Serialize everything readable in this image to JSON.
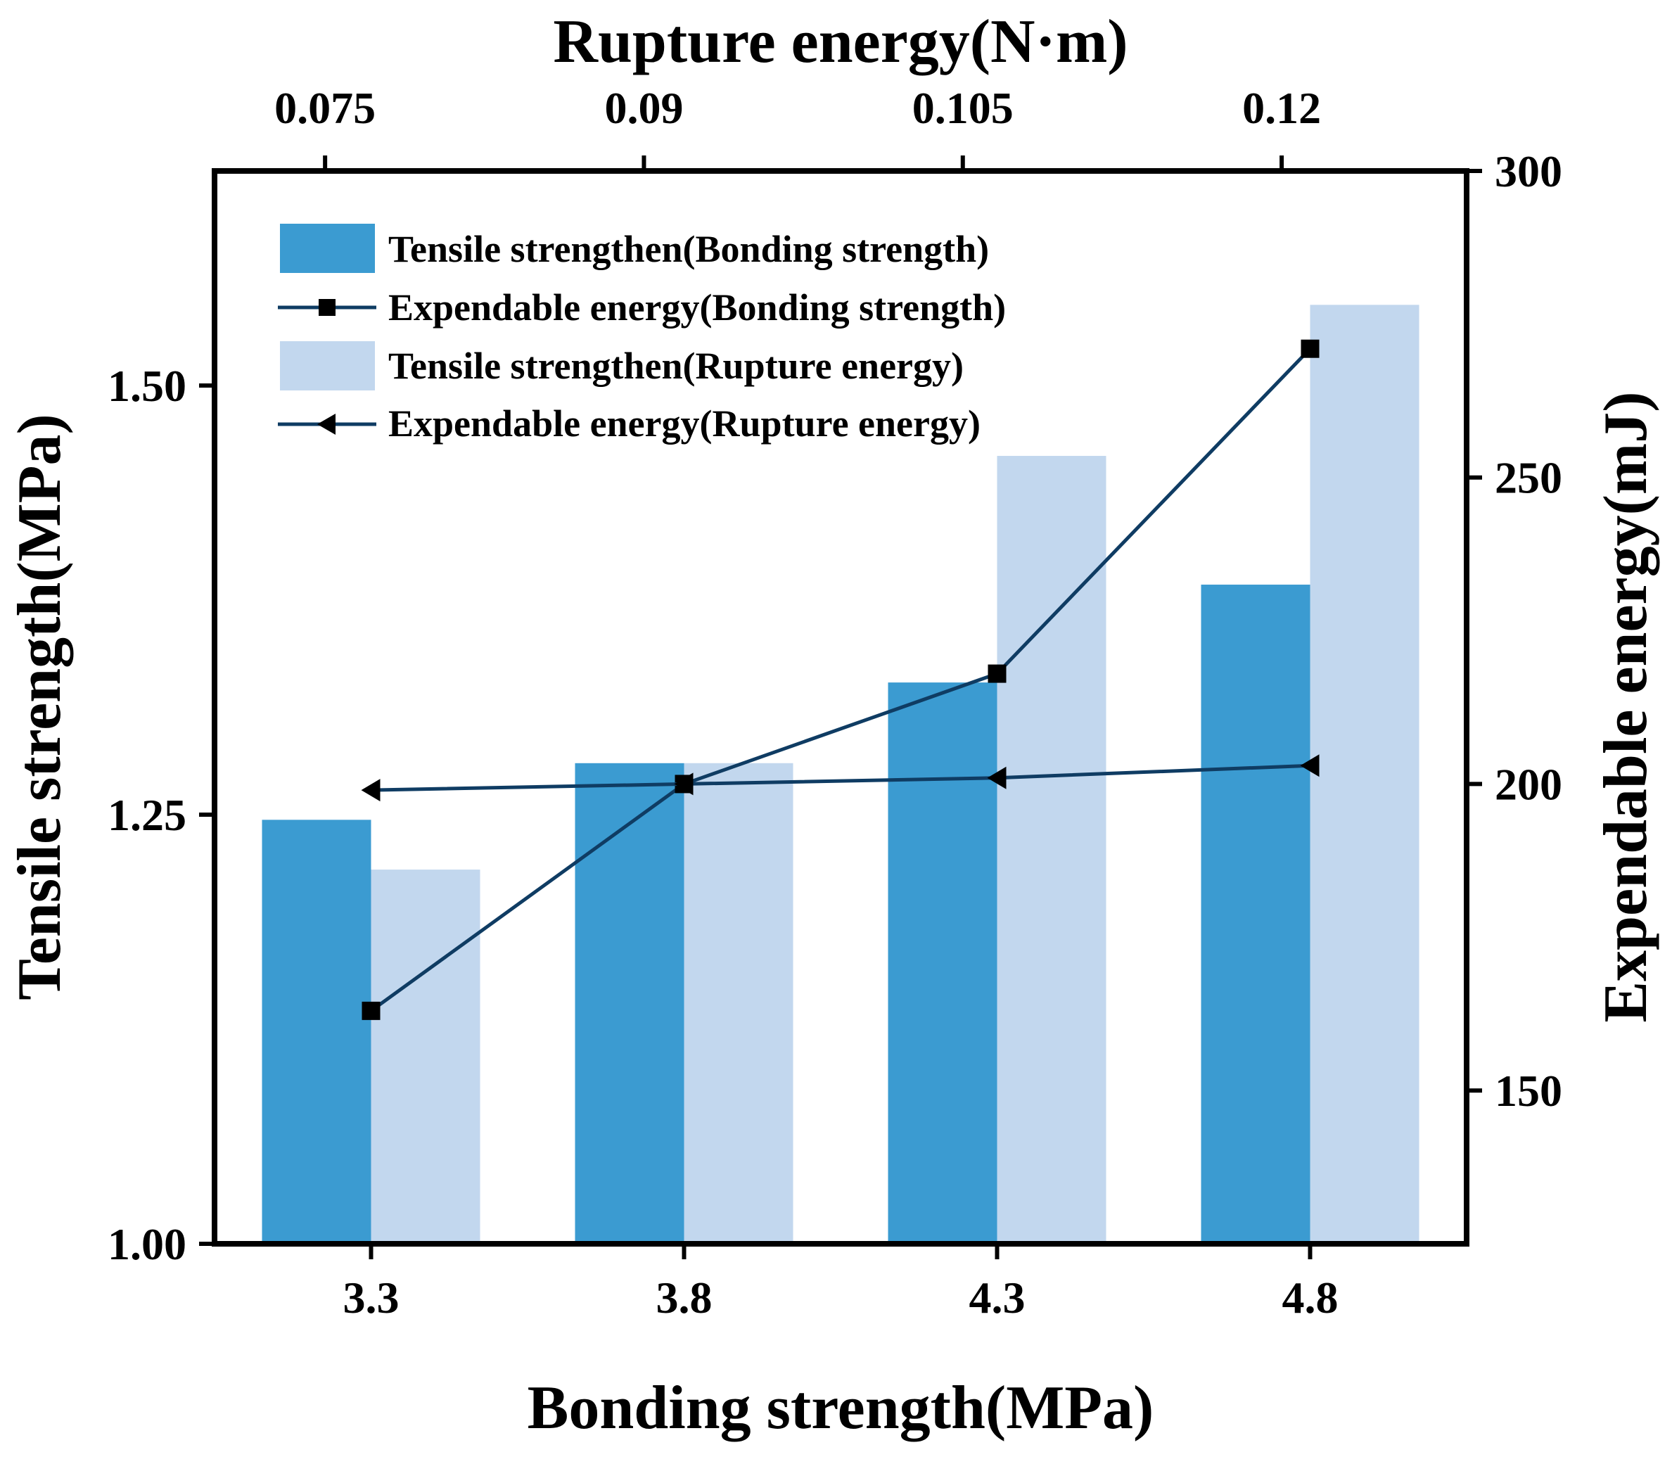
{
  "chart_data": {
    "type": "bar",
    "title": "",
    "xlabel": "Bonding strength(MPa)",
    "x2label": "Rupture energy(N·m)",
    "ylabel": "Tensile strength(MPa)",
    "y2label": "Expendable energy(mJ)",
    "categories": [
      "3.3",
      "3.8",
      "4.3",
      "4.8"
    ],
    "top_ticks": [
      "0.075",
      "0.09",
      "0.105",
      "0.12"
    ],
    "top_tick_values": [
      0.075,
      0.09,
      0.105,
      0.12
    ],
    "top_axis_range": [
      0.0698,
      0.1287
    ],
    "ylim": [
      1.0,
      1.625
    ],
    "yticks": [
      "1.00",
      "1.25",
      "1.50"
    ],
    "ytick_values": [
      1.0,
      1.25,
      1.5
    ],
    "y2lim": [
      125,
      300
    ],
    "y2ticks": [
      "150",
      "200",
      "250",
      "300"
    ],
    "y2tick_values": [
      150,
      200,
      250,
      300
    ],
    "grid": false,
    "legend_position": "top-left",
    "colors": {
      "dark_bar": "#3b9bd1",
      "light_bar": "#c2d7ee",
      "line": "#0f3c63",
      "axis": "#000000"
    },
    "series": [
      {
        "name": "Tensile strengthen(Bonding strength)",
        "kind": "bar",
        "axis": "left",
        "color": "#3b9bd1",
        "values": [
          1.247,
          1.28,
          1.327,
          1.384
        ]
      },
      {
        "name": "Tensile strengthen(Rupture energy)",
        "kind": "bar",
        "axis": "left",
        "color": "#c2d7ee",
        "values": [
          1.218,
          1.28,
          1.459,
          1.547
        ]
      },
      {
        "name": "Expendable energy(Bonding strength)",
        "kind": "line",
        "marker": "square",
        "axis": "right",
        "color": "#0f3c63",
        "values": [
          163,
          200,
          218,
          271
        ]
      },
      {
        "name": "Expendable energy(Rupture energy)",
        "kind": "line",
        "marker": "triangle-left",
        "axis": "right",
        "color": "#0f3c63",
        "values": [
          199,
          200,
          201,
          203
        ]
      }
    ]
  }
}
